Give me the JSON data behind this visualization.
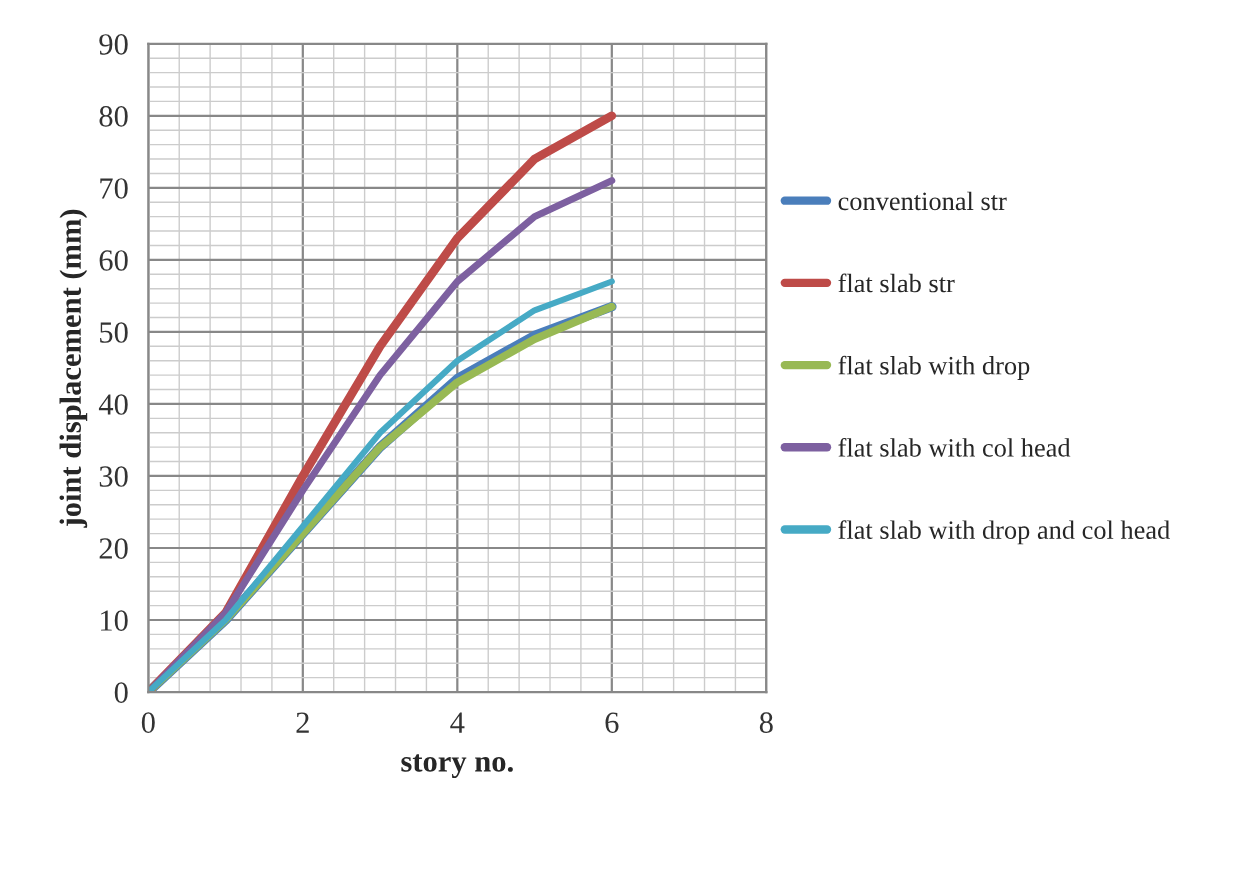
{
  "chart_data": {
    "type": "line",
    "xlabel": "story no.",
    "ylabel": "joint displacement (mm)",
    "x": [
      0,
      1,
      2,
      3,
      4,
      5,
      6
    ],
    "series": [
      {
        "name": "conventional str",
        "color": "#4a7ebb",
        "values": [
          0,
          10,
          22,
          34,
          43.5,
          49.5,
          53.5
        ]
      },
      {
        "name": "flat slab str",
        "color": "#be4b48",
        "values": [
          0,
          11,
          30,
          48,
          63,
          74,
          80
        ]
      },
      {
        "name": "flat slab with drop",
        "color": "#98b954",
        "values": [
          0,
          10,
          22,
          34,
          43,
          49,
          53.5
        ]
      },
      {
        "name": "flat slab with col head",
        "color": "#7d60a0",
        "values": [
          0,
          11,
          28,
          44,
          57,
          66,
          71
        ]
      },
      {
        "name": "flat slab with drop and col head",
        "color": "#46aac5",
        "values": [
          0,
          10,
          23,
          36,
          46,
          53,
          57
        ]
      }
    ],
    "xlim": [
      0,
      8
    ],
    "xticks": [
      0,
      2,
      4,
      6,
      8
    ],
    "ylim": [
      0,
      90
    ],
    "yticks": [
      0,
      10,
      20,
      30,
      40,
      50,
      60,
      70,
      80,
      90
    ],
    "grid": true,
    "legend": "right",
    "marker": "none",
    "line_style": "solid"
  }
}
